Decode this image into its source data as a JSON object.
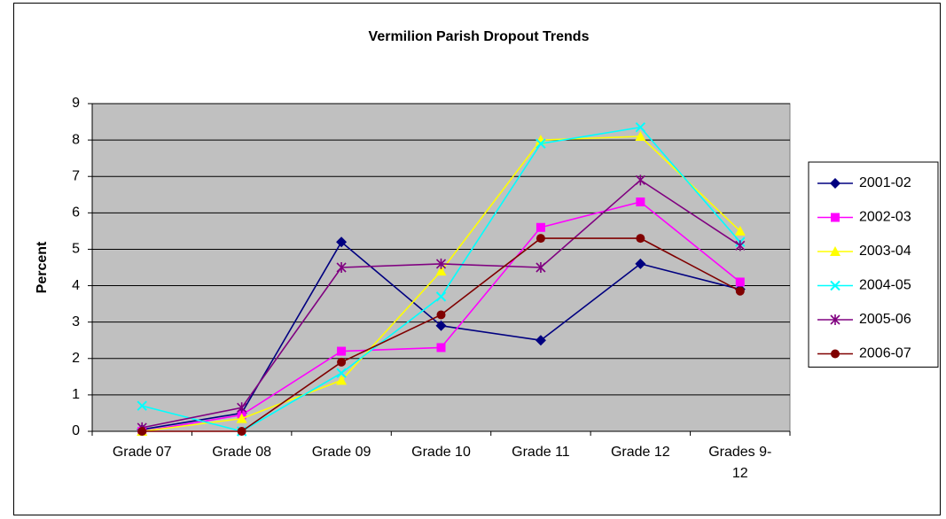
{
  "chart_data": {
    "type": "line",
    "title": "Vermilion Parish Dropout Trends",
    "y_label": "Percent",
    "categories": [
      "Grade 07",
      "Grade 08",
      "Grade 09",
      "Grade 10",
      "Grade 11",
      "Grade 12",
      "Grades 9-12"
    ],
    "series": [
      {
        "name": "2001-02",
        "color": "#000080",
        "marker": "diamond",
        "values": [
          0.05,
          0.5,
          5.2,
          2.9,
          2.5,
          4.6,
          3.9
        ]
      },
      {
        "name": "2002-03",
        "color": "#ff00ff",
        "marker": "square",
        "values": [
          0,
          0.45,
          2.2,
          2.3,
          5.6,
          6.3,
          4.1
        ]
      },
      {
        "name": "2003-04",
        "color": "#ffff00",
        "marker": "triangle",
        "values": [
          0,
          0.35,
          1.4,
          4.4,
          8.0,
          8.1,
          5.5
        ]
      },
      {
        "name": "2004-05",
        "color": "#00ffff",
        "marker": "x",
        "values": [
          0.7,
          0.0,
          1.6,
          3.7,
          7.9,
          8.35,
          5.2
        ]
      },
      {
        "name": "2005-06",
        "color": "#800080",
        "marker": "star",
        "values": [
          0.1,
          0.65,
          4.5,
          4.6,
          4.5,
          6.9,
          5.1
        ]
      },
      {
        "name": "2006-07",
        "color": "#800000",
        "marker": "circle",
        "values": [
          0,
          0,
          1.9,
          3.2,
          5.3,
          5.3,
          3.85
        ]
      }
    ],
    "ylim": [
      0,
      9
    ],
    "yticks": [
      0,
      1,
      2,
      3,
      4,
      5,
      6,
      7,
      8,
      9
    ],
    "grid": true,
    "legend": "right"
  }
}
